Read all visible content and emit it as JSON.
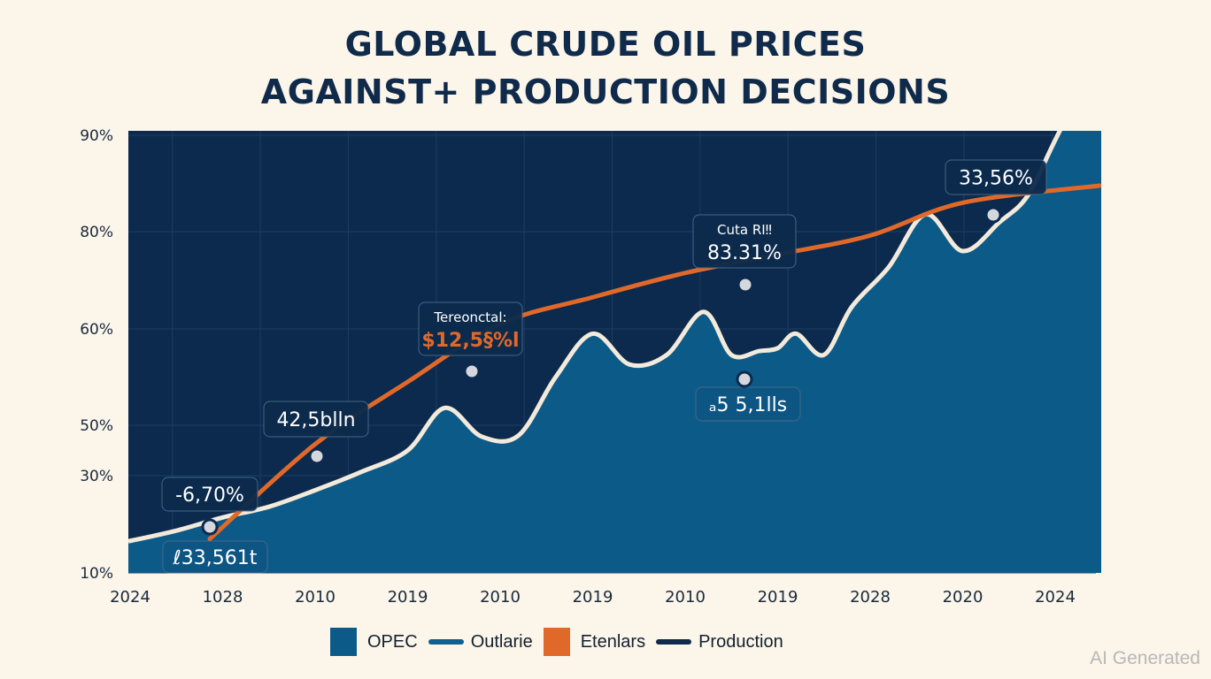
{
  "chart_data": {
    "type": "area",
    "title": "GLOBAL CRUDE OIL PRICES AGAINST+ PRODUCTION DECISIONS",
    "title_lines": [
      "GLOBAL CRUDE OIL PRICES",
      "AGAINST+ PRODUCTION DECISIONS"
    ],
    "xlabel": "",
    "ylabel": "",
    "categories": [
      "2024",
      "1028",
      "2010",
      "2019",
      "2010",
      "2019",
      "2010",
      "2019",
      "2028",
      "2020",
      "2024"
    ],
    "y_tick_labels": [
      "90%",
      "80%",
      "60%",
      "50%",
      "30%",
      "10%"
    ],
    "y_tick_values": [
      90,
      80,
      60,
      50,
      30,
      10
    ],
    "ylim": [
      10,
      90
    ],
    "grid": true,
    "series": [
      {
        "name": "OPEC",
        "kind": "area",
        "color": "#0c5a88",
        "outline_color": "#f3eadb",
        "x": [
          0,
          0.5,
          1,
          1.5,
          2,
          2.5,
          3,
          3.4,
          3.8,
          4.2,
          4.6,
          5.0,
          5.4,
          5.8,
          6.2,
          6.5,
          6.8,
          7.0,
          7.2,
          7.5,
          7.8,
          8.2,
          8.6,
          9.0,
          9.4,
          9.7,
          10.0
        ],
        "values": [
          16.5,
          18.7,
          21.4,
          23.6,
          27.0,
          31.5,
          40.0,
          51.8,
          45.5,
          46.0,
          55.0,
          59.5,
          56.3,
          57.3,
          63.5,
          57.3,
          57.7,
          58.0,
          59.5,
          57.3,
          64.5,
          72.7,
          81.8,
          76.0,
          81.0,
          83.7,
          89.5
        ]
      },
      {
        "name": "Etenlars",
        "kind": "line",
        "color": "#e0692a",
        "x": [
          1,
          2,
          3,
          4,
          5,
          6,
          7,
          8,
          9,
          10
        ],
        "values": [
          17.0,
          42.5,
          54.5,
          61.0,
          66.5,
          71.5,
          75.3,
          79.2,
          83.0,
          86.5
        ]
      }
    ],
    "annotations": [
      {
        "label": "-6,70%",
        "series": "Etenlars",
        "x": 1.0,
        "value": 17.0,
        "position": "above"
      },
      {
        "label": "ℓ33,561t",
        "series": "OPEC",
        "x": 1.0,
        "value": 17.0,
        "position": "below"
      },
      {
        "label": "42,5bl‌ln",
        "series": "Etenlars",
        "x": 2.0,
        "value": 42.5,
        "position": "above"
      },
      {
        "label_top": "Tereonctal:",
        "label": "$12,5§%l",
        "series": "Etenlars",
        "x": 3.6,
        "value": 59.0,
        "position": "above",
        "label_color": "#e0692a"
      },
      {
        "label_top": "Cuta RI‼",
        "label": "83.31%",
        "series": "Etenlars",
        "x": 6.5,
        "value": 74.0,
        "position": "above"
      },
      {
        "label": "ₐ5 5,1l‌ls",
        "series": "OPEC",
        "x": 6.5,
        "value": 57.3,
        "position": "below"
      },
      {
        "label": "33,56%",
        "series": "Etenlars",
        "x": 9.0,
        "value": 83.0,
        "position": "above"
      }
    ],
    "legend": {
      "placement": "bottom-center",
      "entries": [
        {
          "label": "OPEC",
          "swatch": "box",
          "color": "#0c5a88"
        },
        {
          "label": "Outlarie",
          "swatch": "line",
          "color": "#115f8e"
        },
        {
          "label": "Etenlars",
          "swatch": "box",
          "color": "#e0692a"
        },
        {
          "label": "Production",
          "swatch": "line",
          "color": "#0f2a4a"
        }
      ]
    },
    "colors": {
      "plot_background": "#0b2a4d",
      "page_background": "#fbf5ea",
      "grid": "#1c3d62",
      "marker": "#d4d8de"
    }
  },
  "watermark": "AI Generated"
}
